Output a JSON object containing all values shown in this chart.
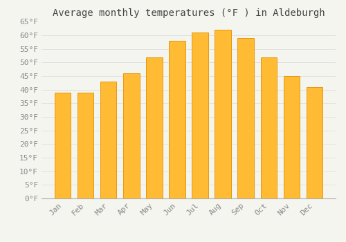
{
  "title": "Average monthly temperatures (°F ) in Aldeburgh",
  "months": [
    "Jan",
    "Feb",
    "Mar",
    "Apr",
    "May",
    "Jun",
    "Jul",
    "Aug",
    "Sep",
    "Oct",
    "Nov",
    "Dec"
  ],
  "values": [
    39,
    39,
    43,
    46,
    52,
    58,
    61,
    62,
    59,
    52,
    45,
    41
  ],
  "bar_color": "#FFBB33",
  "bar_edge_color": "#E8960A",
  "background_color": "#F5F5F0",
  "grid_color": "#DDDDDD",
  "ylim": [
    0,
    65
  ],
  "yticks": [
    0,
    5,
    10,
    15,
    20,
    25,
    30,
    35,
    40,
    45,
    50,
    55,
    60,
    65
  ],
  "tick_label_color": "#888888",
  "title_color": "#444444",
  "title_fontsize": 10,
  "tick_fontsize": 8,
  "font_family": "monospace"
}
